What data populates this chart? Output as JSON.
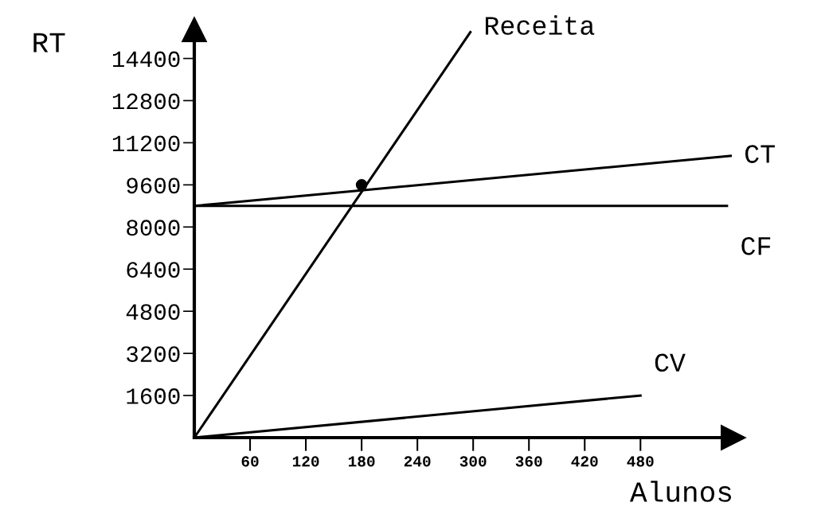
{
  "chart_data": {
    "type": "line",
    "xlabel": "Alunos",
    "ylabel": "RT",
    "xlim": [
      0,
      580
    ],
    "ylim": [
      0,
      15500
    ],
    "xticks": [
      60,
      120,
      180,
      240,
      300,
      360,
      420,
      480
    ],
    "yticks": [
      1600,
      3200,
      4800,
      6400,
      8000,
      9600,
      11200,
      12800,
      14400
    ],
    "grid": false,
    "legend": false,
    "marker": "none",
    "line_style": "solid",
    "series": [
      {
        "name": "Receita",
        "color": "#000000",
        "x": [
          0,
          297
        ],
        "values": [
          0,
          15400
        ]
      },
      {
        "name": "CT",
        "color": "#000000",
        "x": [
          0,
          577
        ],
        "values": [
          8800,
          10700
        ]
      },
      {
        "name": "CF",
        "color": "#000000",
        "x": [
          0,
          573
        ],
        "values": [
          8800,
          8800
        ]
      },
      {
        "name": "CV",
        "color": "#000000",
        "x": [
          0,
          480
        ],
        "values": [
          0,
          1600
        ]
      },
      {
        "type": "scatter",
        "marker": "circle",
        "color": "#000000",
        "x": [
          180
        ],
        "values": [
          9600
        ]
      }
    ]
  }
}
